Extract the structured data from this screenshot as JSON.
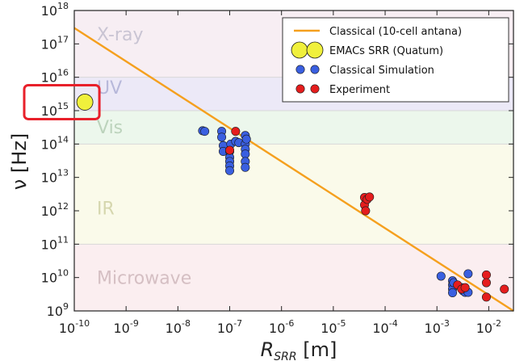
{
  "chart_data": {
    "type": "scatter",
    "title": "",
    "xlabel": "R_SRR [m]",
    "ylabel": "ν [Hz]",
    "xscale": "log",
    "yscale": "log",
    "xlim": [
      1e-10,
      0.03
    ],
    "ylim": [
      1000000000.0,
      1e+18
    ],
    "x_ticks": [
      {
        "exp": "-10",
        "label": "10-10"
      },
      {
        "exp": "-9",
        "label": "10-9"
      },
      {
        "exp": "-8",
        "label": "10-8"
      },
      {
        "exp": "-7",
        "label": "10-7"
      },
      {
        "exp": "-6",
        "label": "10-6"
      },
      {
        "exp": "-5",
        "label": "10-5"
      },
      {
        "exp": "-4",
        "label": "10-4"
      },
      {
        "exp": "-3",
        "label": "10-3"
      },
      {
        "exp": "-2",
        "label": "10-2"
      }
    ],
    "y_ticks": [
      {
        "exp": "9",
        "label": "109"
      },
      {
        "exp": "10",
        "label": "1010"
      },
      {
        "exp": "11",
        "label": "1011"
      },
      {
        "exp": "12",
        "label": "1012"
      },
      {
        "exp": "13",
        "label": "1013"
      },
      {
        "exp": "14",
        "label": "1014"
      },
      {
        "exp": "15",
        "label": "1015"
      },
      {
        "exp": "16",
        "label": "1016"
      },
      {
        "exp": "17",
        "label": "1017"
      },
      {
        "exp": "18",
        "label": "1018"
      }
    ],
    "bands": [
      {
        "name": "X-ray",
        "ymin": 1e+16,
        "ymax": 1e+18,
        "color": "#f7eef3",
        "label_color": "#c9c4d3"
      },
      {
        "name": "UV",
        "ymin": 1000000000000000.0,
        "ymax": 1e+16,
        "color": "#ece9f7",
        "label_color": "#b7b8da"
      },
      {
        "name": "Vis",
        "ymin": 100000000000000.0,
        "ymax": 1000000000000000.0,
        "color": "#ecf7ec",
        "label_color": "#bcd3bc"
      },
      {
        "name": "IR",
        "ymin": 100000000000.0,
        "ymax": 100000000000000.0,
        "color": "#fafaea",
        "label_color": "#d5d6ae"
      },
      {
        "name": "Microwave",
        "ymin": 1000000000.0,
        "ymax": 100000000000.0,
        "color": "#fbeef0",
        "label_color": "#d5bfc3"
      }
    ],
    "series": [
      {
        "name": "Classical (10-cell antana)",
        "type": "line",
        "color": "#f5a01e",
        "points": [
          [
            1e-10,
            3e+17
          ],
          [
            0.03,
            1000000000.0
          ]
        ]
      },
      {
        "name": "EMACs SRR (Quatum)",
        "type": "scatter",
        "color": "#f0f03c",
        "points": [
          [
            1.6e-10,
            1800000000000000.0
          ]
        ]
      },
      {
        "name": "Classical Simulation",
        "type": "scatter",
        "color": "#3a5fe0",
        "points": [
          [
            3e-08,
            250000000000000.0
          ],
          [
            3.3e-08,
            240000000000000.0
          ],
          [
            7e-08,
            240000000000000.0
          ],
          [
            7e-08,
            160000000000000.0
          ],
          [
            7.5e-08,
            90000000000000.0
          ],
          [
            7.5e-08,
            60000000000000.0
          ],
          [
            1e-07,
            60000000000000.0
          ],
          [
            1e-07,
            40000000000000.0
          ],
          [
            1e-07,
            30000000000000.0
          ],
          [
            1e-07,
            22000000000000.0
          ],
          [
            1e-07,
            16000000000000.0
          ],
          [
            1.05e-07,
            100000000000000.0
          ],
          [
            1.3e-07,
            120000000000000.0
          ],
          [
            1.5e-07,
            110000000000000.0
          ],
          [
            2e-07,
            180000000000000.0
          ],
          [
            2e-07,
            100000000000000.0
          ],
          [
            2e-07,
            70000000000000.0
          ],
          [
            2e-07,
            50000000000000.0
          ],
          [
            2e-07,
            30000000000000.0
          ],
          [
            2e-07,
            20000000000000.0
          ],
          [
            2.1e-07,
            140000000000000.0
          ],
          [
            0.0012,
            11000000000.0
          ],
          [
            0.002,
            8000000000.0
          ],
          [
            0.002,
            6000000000.0
          ],
          [
            0.002,
            4500000000.0
          ],
          [
            0.002,
            3500000000.0
          ],
          [
            0.0021,
            7000000000.0
          ],
          [
            0.003,
            5000000000.0
          ],
          [
            0.0032,
            4000000000.0
          ],
          [
            0.0035,
            3600000000.0
          ],
          [
            0.004,
            13000000000.0
          ],
          [
            0.004,
            3600000000.0
          ]
        ]
      },
      {
        "name": "Experiment",
        "type": "scatter",
        "color": "#e51d1d",
        "points": [
          [
            1e-07,
            65000000000000.0
          ],
          [
            1.3e-07,
            240000000000000.0
          ],
          [
            4e-05,
            2500000000000.0
          ],
          [
            4e-05,
            1500000000000.0
          ],
          [
            4.2e-05,
            1000000000000.0
          ],
          [
            4.5e-05,
            2200000000000.0
          ],
          [
            5e-05,
            2600000000000.0
          ],
          [
            0.0025,
            6000000000.0
          ],
          [
            0.003,
            4500000000.0
          ],
          [
            0.0035,
            5000000000.0
          ],
          [
            0.009,
            12000000000.0
          ],
          [
            0.009,
            7000000000.0
          ],
          [
            0.009,
            2600000000.0
          ],
          [
            0.02,
            4500000000.0
          ]
        ]
      }
    ],
    "legend": {
      "position": "top-right",
      "entries": [
        {
          "label": "Classical (10-cell antana)",
          "marker": "line",
          "color": "#f5a01e"
        },
        {
          "label": "EMACs SRR (Quatum)",
          "marker": "big-circle",
          "color": "#f0f03c"
        },
        {
          "label": "Classical Simulation",
          "marker": "circle",
          "color": "#3a5fe0"
        },
        {
          "label": "Experiment",
          "marker": "circle",
          "color": "#e51d1d"
        }
      ]
    },
    "annotations": [
      {
        "type": "highlight-box",
        "target": "EMACs SRR (Quatum)",
        "color": "#e8202a"
      }
    ]
  }
}
